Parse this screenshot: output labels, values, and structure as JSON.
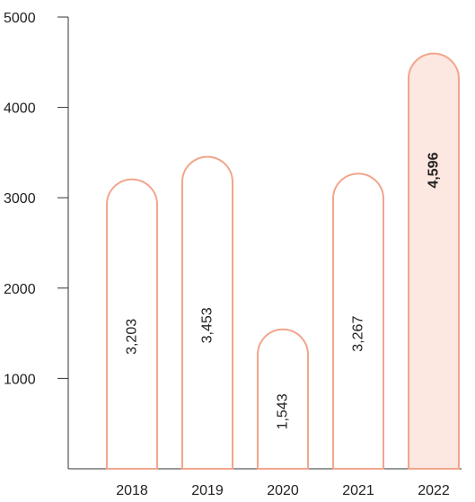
{
  "chart_data": {
    "type": "bar",
    "title": "",
    "xlabel": "",
    "ylabel": "",
    "categories": [
      "2018",
      "2019",
      "2020",
      "2021",
      "2022"
    ],
    "values": [
      3203,
      3453,
      1543,
      3267,
      4596
    ],
    "value_labels": [
      "3,203",
      "3,453",
      "1,543",
      "3,267",
      "4,596"
    ],
    "highlight_index": 4,
    "ylim": [
      0,
      5000
    ],
    "yticks": [
      1000,
      2000,
      3000,
      4000,
      5000
    ],
    "ytick_labels": [
      "1000",
      "2000",
      "3000",
      "4000",
      "5000"
    ],
    "grid": false,
    "colors": {
      "bar_stroke": "#f2a58c",
      "bar_fill": "#ffffff",
      "highlight_fill": "#fde7e1",
      "highlight_text": "#e8212e"
    }
  }
}
